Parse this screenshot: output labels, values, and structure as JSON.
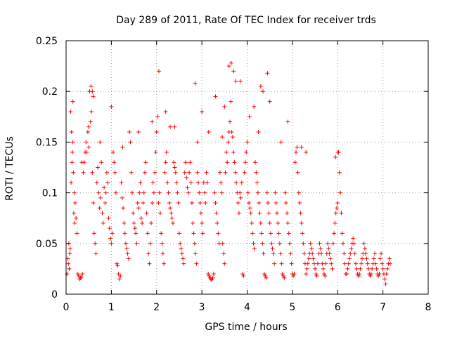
{
  "chart_data": {
    "type": "scatter",
    "title": "Day 289 of 2011, Rate Of TEC Index for receiver trds",
    "xlabel": "GPS time / hours",
    "ylabel": "ROTI / TECUs",
    "xlim": [
      0,
      8
    ],
    "ylim": [
      0,
      0.25
    ],
    "x_ticks": [
      0,
      1,
      2,
      3,
      4,
      5,
      6,
      7,
      8
    ],
    "x_tick_labels": [
      "0",
      "1",
      "2",
      "3",
      "4",
      "5",
      "6",
      "7",
      "8"
    ],
    "y_ticks": [
      0,
      0.05,
      0.1,
      0.15,
      0.2,
      0.25
    ],
    "y_tick_labels": [
      "0",
      "0.05",
      "0.1",
      "0.15",
      "0.2",
      "0.25"
    ],
    "grid": true,
    "marker": "+",
    "marker_color": "#ff0000",
    "series": [
      {
        "name": "ROTI",
        "x": [
          0.02,
          0.04,
          0.06,
          0.08,
          0.1,
          0.12,
          0.14,
          0.16,
          0.18,
          0.2,
          0.22,
          0.24,
          0.05,
          0.07,
          0.09,
          0.11,
          0.13,
          0.15,
          0.17,
          0.19,
          0.26,
          0.28,
          0.3,
          0.32,
          0.34,
          0.36,
          0.38,
          0.4,
          0.42,
          0.44,
          0.46,
          0.48,
          0.5,
          0.52,
          0.54,
          0.56,
          0.58,
          0.6,
          0.62,
          0.64,
          0.66,
          0.68,
          0.7,
          0.72,
          0.74,
          0.76,
          0.78,
          0.8,
          0.82,
          0.84,
          0.86,
          0.88,
          0.9,
          0.92,
          0.94,
          0.96,
          0.98,
          1.0,
          1.02,
          1.04,
          1.06,
          1.08,
          1.1,
          1.12,
          1.14,
          1.16,
          1.18,
          1.2,
          1.22,
          1.24,
          1.26,
          1.28,
          1.3,
          1.32,
          1.34,
          1.36,
          1.38,
          1.4,
          1.42,
          1.44,
          1.46,
          1.48,
          1.5,
          1.52,
          1.54,
          1.56,
          1.58,
          1.6,
          1.62,
          1.64,
          1.66,
          1.68,
          1.7,
          1.72,
          1.74,
          1.76,
          1.78,
          1.8,
          1.82,
          1.84,
          1.86,
          1.88,
          1.9,
          1.92,
          1.94,
          1.96,
          1.98,
          2.0,
          2.02,
          2.04,
          2.06,
          2.08,
          2.1,
          2.12,
          2.14,
          2.16,
          2.18,
          2.2,
          2.22,
          2.24,
          2.26,
          2.28,
          2.3,
          2.32,
          2.34,
          2.36,
          2.38,
          2.4,
          2.42,
          2.44,
          2.46,
          2.48,
          2.5,
          2.52,
          2.54,
          2.56,
          2.58,
          2.6,
          2.62,
          2.64,
          2.66,
          2.68,
          2.7,
          2.72,
          2.74,
          2.76,
          2.78,
          2.8,
          2.82,
          2.84,
          2.86,
          2.88,
          2.9,
          2.92,
          2.94,
          2.96,
          2.98,
          3.0,
          3.02,
          3.04,
          3.06,
          3.08,
          3.1,
          3.12,
          3.14,
          3.16,
          3.18,
          3.2,
          3.22,
          3.24,
          3.26,
          3.28,
          3.3,
          3.32,
          3.34,
          3.36,
          3.38,
          3.4,
          3.42,
          3.44,
          3.46,
          3.48,
          3.5,
          3.52,
          3.54,
          3.56,
          3.58,
          3.6,
          3.62,
          3.64,
          3.66,
          3.68,
          3.7,
          3.72,
          3.74,
          3.76,
          3.78,
          3.8,
          3.82,
          3.84,
          3.86,
          3.88,
          3.9,
          3.92,
          3.94,
          3.96,
          3.98,
          4.0,
          4.02,
          4.04,
          4.06,
          4.08,
          4.1,
          4.12,
          4.14,
          4.16,
          4.18,
          4.2,
          4.22,
          4.24,
          4.26,
          4.28,
          4.3,
          4.32,
          4.34,
          4.36,
          4.38,
          4.4,
          4.42,
          4.44,
          4.46,
          4.48,
          4.5,
          4.52,
          4.54,
          4.56,
          4.58,
          4.6,
          4.62,
          4.64,
          4.66,
          4.68,
          4.7,
          4.72,
          4.74,
          4.76,
          4.78,
          4.8,
          4.82,
          4.84,
          4.86,
          4.88,
          4.9,
          4.92,
          4.94,
          4.96,
          4.98,
          5.0,
          5.02,
          5.04,
          5.06,
          5.08,
          5.1,
          5.12,
          5.14,
          5.16,
          5.18,
          5.2,
          5.22,
          5.24,
          5.26,
          5.28,
          5.3,
          5.32,
          5.34,
          5.36,
          5.38,
          5.4,
          5.42,
          5.44,
          5.46,
          5.48,
          5.5,
          5.52,
          5.54,
          5.56,
          5.58,
          5.6,
          5.62,
          5.64,
          5.66,
          5.68,
          5.7,
          5.72,
          5.74,
          5.76,
          5.78,
          5.8,
          5.82,
          5.84,
          5.86,
          5.88,
          5.9,
          5.92,
          5.94,
          5.96,
          5.98,
          6.0,
          6.02,
          6.04,
          6.06,
          6.08,
          6.1,
          6.12,
          6.14,
          6.16,
          6.18,
          6.2,
          6.22,
          6.24,
          6.26,
          6.28,
          6.3,
          6.32,
          6.34,
          6.36,
          6.38,
          6.4,
          6.42,
          6.44,
          6.46,
          6.48,
          6.5,
          6.52,
          6.54,
          6.56,
          6.58,
          6.6,
          6.62,
          6.64,
          6.66,
          6.68,
          6.7,
          6.72,
          6.74,
          6.76,
          6.78,
          6.8,
          6.82,
          6.84,
          6.86,
          6.88,
          6.9,
          6.92,
          6.94,
          6.96,
          6.98,
          7.0,
          7.02,
          7.04,
          7.06,
          7.08,
          7.1,
          7.12,
          7.14,
          7.16,
          0.55,
          0.58,
          0.6,
          1.0,
          2.05,
          2.2,
          2.85,
          3.0,
          3.6,
          3.65,
          3.7,
          3.75,
          4.3,
          4.35,
          4.45,
          4.5,
          0.15,
          0.5,
          1.9,
          2.4,
          3.3,
          3.5,
          3.85,
          4.05,
          4.15,
          4.9,
          5.2,
          5.3,
          5.95,
          6.0,
          0.35,
          0.75,
          1.25,
          1.6,
          2.3,
          2.9,
          3.15,
          3.45,
          4.25,
          4.75
        ],
        "y": [
          0.02,
          0.035,
          0.05,
          0.04,
          0.18,
          0.16,
          0.14,
          0.12,
          0.1,
          0.09,
          0.075,
          0.06,
          0.03,
          0.025,
          0.045,
          0.11,
          0.13,
          0.15,
          0.08,
          0.07,
          0.02,
          0.018,
          0.015,
          0.016,
          0.017,
          0.02,
          0.12,
          0.13,
          0.14,
          0.15,
          0.14,
          0.16,
          0.145,
          0.2,
          0.17,
          0.18,
          0.12,
          0.09,
          0.06,
          0.05,
          0.04,
          0.11,
          0.125,
          0.1,
          0.085,
          0.095,
          0.13,
          0.08,
          0.07,
          0.105,
          0.09,
          0.1,
          0.12,
          0.11,
          0.075,
          0.065,
          0.055,
          0.05,
          0.06,
          0.14,
          0.13,
          0.12,
          0.1,
          0.03,
          0.028,
          0.02,
          0.015,
          0.018,
          0.11,
          0.095,
          0.085,
          0.07,
          0.06,
          0.05,
          0.045,
          0.04,
          0.035,
          0.16,
          0.15,
          0.12,
          0.1,
          0.08,
          0.07,
          0.065,
          0.06,
          0.05,
          0.09,
          0.085,
          0.1,
          0.11,
          0.075,
          0.07,
          0.09,
          0.1,
          0.12,
          0.13,
          0.08,
          0.06,
          0.04,
          0.03,
          0.05,
          0.07,
          0.09,
          0.11,
          0.1,
          0.12,
          0.14,
          0.16,
          0.175,
          0.09,
          0.1,
          0.08,
          0.06,
          0.05,
          0.04,
          0.03,
          0.12,
          0.13,
          0.14,
          0.11,
          0.1,
          0.09,
          0.085,
          0.08,
          0.075,
          0.07,
          0.13,
          0.125,
          0.12,
          0.11,
          0.1,
          0.09,
          0.06,
          0.05,
          0.045,
          0.04,
          0.035,
          0.03,
          0.12,
          0.13,
          0.115,
          0.105,
          0.1,
          0.12,
          0.13,
          0.11,
          0.09,
          0.07,
          0.06,
          0.05,
          0.04,
          0.03,
          0.12,
          0.11,
          0.1,
          0.09,
          0.08,
          0.07,
          0.06,
          0.11,
          0.1,
          0.09,
          0.12,
          0.11,
          0.02,
          0.018,
          0.016,
          0.015,
          0.014,
          0.016,
          0.02,
          0.1,
          0.09,
          0.08,
          0.07,
          0.06,
          0.05,
          0.12,
          0.11,
          0.1,
          0.05,
          0.04,
          0.03,
          0.12,
          0.14,
          0.13,
          0.15,
          0.16,
          0.17,
          0.19,
          0.16,
          0.155,
          0.14,
          0.13,
          0.12,
          0.11,
          0.1,
          0.09,
          0.08,
          0.1,
          0.095,
          0.11,
          0.02,
          0.018,
          0.12,
          0.13,
          0.14,
          0.15,
          0.1,
          0.09,
          0.085,
          0.08,
          0.07,
          0.06,
          0.05,
          0.045,
          0.13,
          0.12,
          0.11,
          0.1,
          0.09,
          0.08,
          0.07,
          0.06,
          0.05,
          0.04,
          0.02,
          0.018,
          0.016,
          0.1,
          0.09,
          0.08,
          0.07,
          0.06,
          0.05,
          0.045,
          0.04,
          0.03,
          0.1,
          0.09,
          0.08,
          0.07,
          0.06,
          0.05,
          0.04,
          0.03,
          0.02,
          0.018,
          0.016,
          0.1,
          0.09,
          0.08,
          0.07,
          0.06,
          0.05,
          0.04,
          0.03,
          0.02,
          0.018,
          0.02,
          0.13,
          0.14,
          0.145,
          0.12,
          0.1,
          0.09,
          0.08,
          0.07,
          0.06,
          0.05,
          0.04,
          0.03,
          0.02,
          0.025,
          0.03,
          0.035,
          0.04,
          0.05,
          0.045,
          0.04,
          0.035,
          0.03,
          0.025,
          0.02,
          0.018,
          0.03,
          0.04,
          0.05,
          0.045,
          0.04,
          0.03,
          0.025,
          0.02,
          0.018,
          0.03,
          0.04,
          0.05,
          0.045,
          0.04,
          0.035,
          0.03,
          0.025,
          0.05,
          0.06,
          0.07,
          0.08,
          0.085,
          0.09,
          0.14,
          0.12,
          0.1,
          0.08,
          0.06,
          0.05,
          0.04,
          0.03,
          0.02,
          0.02,
          0.025,
          0.03,
          0.035,
          0.04,
          0.045,
          0.05,
          0.055,
          0.05,
          0.04,
          0.03,
          0.025,
          0.02,
          0.018,
          0.02,
          0.025,
          0.03,
          0.035,
          0.04,
          0.05,
          0.045,
          0.04,
          0.035,
          0.03,
          0.025,
          0.02,
          0.018,
          0.02,
          0.025,
          0.03,
          0.035,
          0.04,
          0.03,
          0.025,
          0.02,
          0.018,
          0.02,
          0.035,
          0.04,
          0.03,
          0.025,
          0.02,
          0.015,
          0.01,
          0.02,
          0.025,
          0.03,
          0.035,
          0.03,
          0.205,
          0.2,
          0.195,
          0.185,
          0.22,
          0.18,
          0.208,
          0.18,
          0.225,
          0.228,
          0.22,
          0.21,
          0.205,
          0.2,
          0.218,
          0.19,
          0.19,
          0.165,
          0.17,
          0.165,
          0.195,
          0.185,
          0.21,
          0.175,
          0.185,
          0.17,
          0.145,
          0.14,
          0.135,
          0.14,
          0.13,
          0.15,
          0.145,
          0.16,
          0.165,
          0.15,
          0.16,
          0.155,
          0.16,
          0.15
        ]
      }
    ]
  }
}
